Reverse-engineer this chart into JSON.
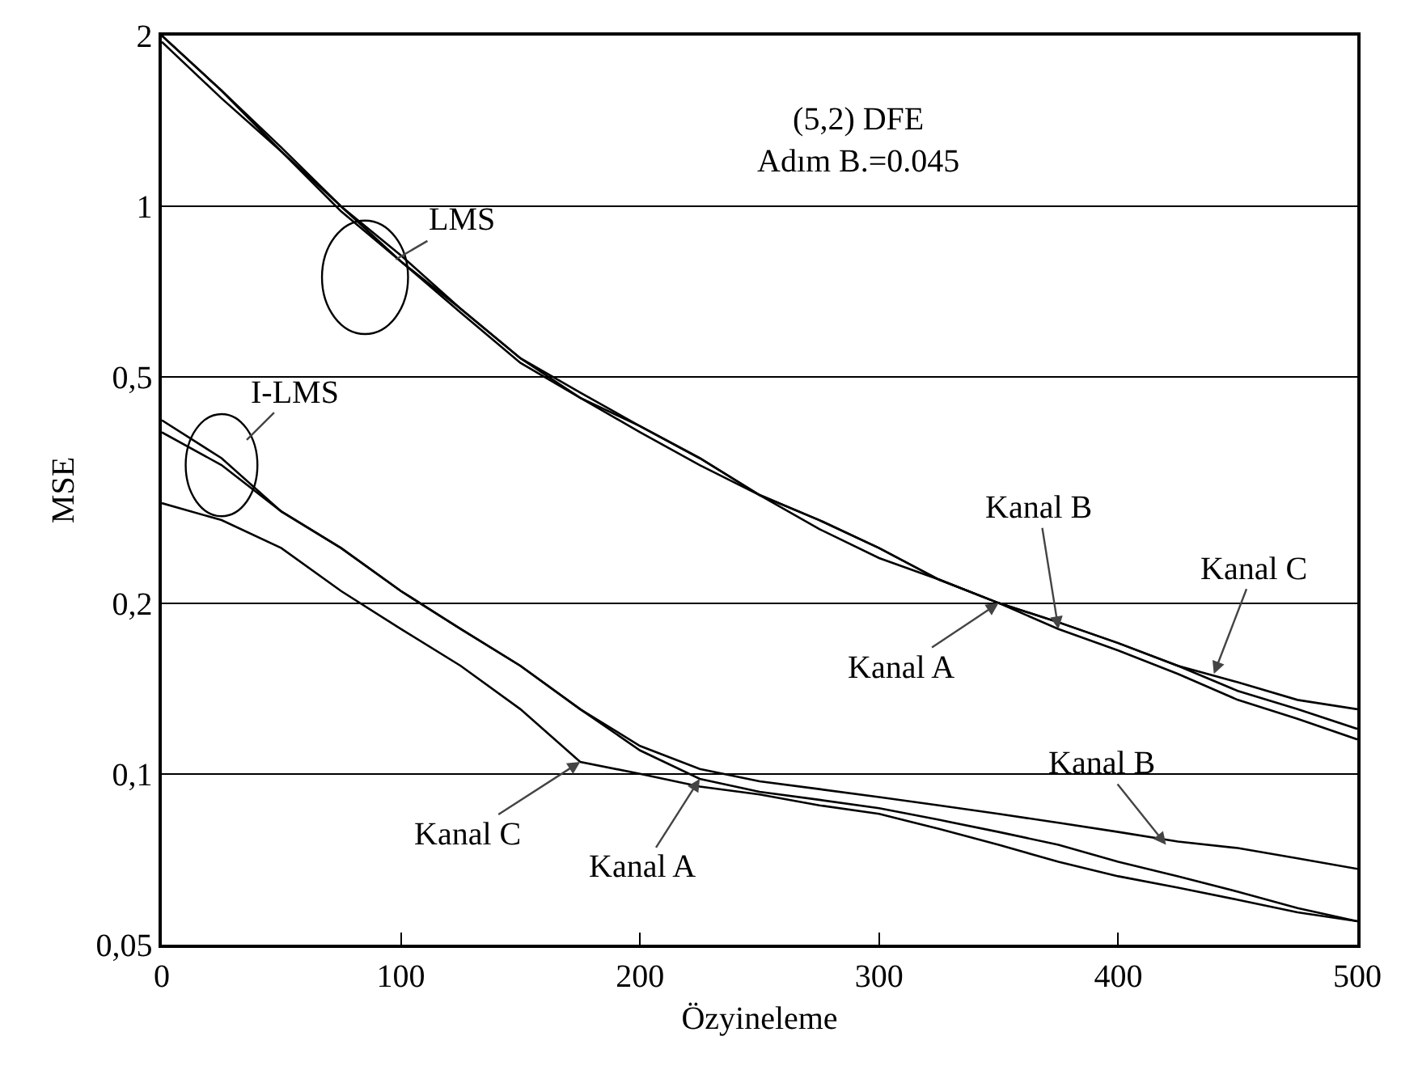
{
  "chart_data": {
    "type": "line",
    "xlabel": "Özyineleme",
    "ylabel": "MSE",
    "log": "y",
    "grid": "y",
    "marker": "none",
    "line_style": "solid",
    "xlim": [
      0,
      500
    ],
    "xticks": [
      0,
      100,
      200,
      300,
      400,
      500
    ],
    "ylim": [
      0.05,
      2
    ],
    "yticks": [
      {
        "value": 0.05,
        "label": "0,05"
      },
      {
        "value": 0.1,
        "label": "0,1"
      },
      {
        "value": 0.2,
        "label": "0,2"
      },
      {
        "value": 0.5,
        "label": "0,5"
      },
      {
        "value": 1,
        "label": "1"
      },
      {
        "value": 2,
        "label": "2"
      }
    ],
    "x": [
      0,
      25,
      50,
      75,
      100,
      125,
      150,
      175,
      200,
      225,
      250,
      275,
      300,
      325,
      350,
      375,
      400,
      425,
      450,
      475,
      500
    ],
    "series": [
      {
        "color": "#000000",
        "values": [
          2.0,
          1.6,
          1.27,
          1.0,
          0.82,
          0.66,
          0.54,
          0.47,
          0.41,
          0.36,
          0.31,
          0.28,
          0.25,
          0.22,
          0.2,
          0.185,
          0.17,
          0.155,
          0.14,
          0.13,
          0.12
        ]
      },
      {
        "color": "#000000",
        "values": [
          2.0,
          1.6,
          1.25,
          1.0,
          0.8,
          0.65,
          0.53,
          0.46,
          0.4,
          0.35,
          0.31,
          0.27,
          0.24,
          0.22,
          0.2,
          0.18,
          0.165,
          0.15,
          0.135,
          0.125,
          0.115
        ]
      },
      {
        "color": "#000000",
        "values": [
          1.95,
          1.55,
          1.25,
          0.98,
          0.8,
          0.66,
          0.54,
          0.46,
          0.41,
          0.36,
          0.31,
          0.28,
          0.25,
          0.22,
          0.2,
          0.185,
          0.17,
          0.155,
          0.145,
          0.135,
          0.13
        ]
      },
      {
        "color": "#000000",
        "values": [
          0.42,
          0.36,
          0.29,
          0.25,
          0.21,
          0.18,
          0.155,
          0.13,
          0.11,
          0.098,
          0.093,
          0.09,
          0.087,
          0.083,
          0.079,
          0.075,
          0.07,
          0.066,
          0.062,
          0.058,
          0.055
        ]
      },
      {
        "color": "#000000",
        "values": [
          0.4,
          0.35,
          0.29,
          0.25,
          0.21,
          0.18,
          0.155,
          0.13,
          0.112,
          0.102,
          0.097,
          0.094,
          0.091,
          0.088,
          0.085,
          0.082,
          0.079,
          0.076,
          0.074,
          0.071,
          0.068
        ]
      },
      {
        "color": "#000000",
        "values": [
          0.3,
          0.28,
          0.25,
          0.21,
          0.18,
          0.155,
          0.13,
          0.105,
          0.1,
          0.095,
          0.092,
          0.088,
          0.085,
          0.08,
          0.075,
          0.07,
          0.066,
          0.063,
          0.06,
          0.057,
          0.055
        ]
      }
    ],
    "annotations": [
      "(5,2) DFE\nAdım B.=0.045",
      {
        "text": "LMS",
        "x": 85,
        "y": 0.75
      },
      {
        "text": "I-LMS",
        "x": 25,
        "y": 0.35
      },
      {
        "text": "Kanal A",
        "x": 350,
        "y": 0.2
      },
      {
        "text": "Kanal B",
        "x": 375,
        "y": 0.18
      },
      {
        "text": "Kanal C",
        "x": 440,
        "y": 0.15
      },
      {
        "text": "Kanal C",
        "x": 175,
        "y": 0.105
      },
      {
        "text": "Kanal A",
        "x": 225,
        "y": 0.098
      },
      {
        "text": "Kanal B",
        "x": 420,
        "y": 0.075
      }
    ]
  }
}
